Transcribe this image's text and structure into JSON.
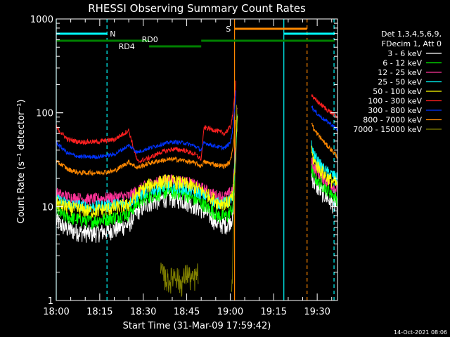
{
  "chart_data": {
    "type": "line",
    "title": "RHESSI Observing Summary Count Rates",
    "xlabel": "Start Time (31-Mar-09 17:59:42)",
    "ylabel": "Count Rate (s⁻¹ detector⁻¹)",
    "yscale": "log",
    "ylim": [
      1,
      1000
    ],
    "xlim_minutes": [
      0,
      97
    ],
    "x_ticks": [
      "18:00",
      "18:15",
      "18:30",
      "18:45",
      "19:00",
      "19:15",
      "19:30"
    ],
    "y_ticks": [
      "1",
      "10",
      "100",
      "1000"
    ],
    "legend_header": [
      "Det 1,3,4,5,6,9,",
      "FDecim 1, Att 0"
    ],
    "legend_position": "right",
    "timestamp": "14-Oct-2021 08:06",
    "annotations": {
      "N": "N",
      "S": "S",
      "RD0": "RD0",
      "RD4": "RD4"
    },
    "series": [
      {
        "name": "3 - 6 keV",
        "color": "#ffffff",
        "points": [
          [
            0,
            7
          ],
          [
            3,
            6
          ],
          [
            6,
            5.5
          ],
          [
            12,
            5.2
          ],
          [
            18,
            5.5
          ],
          [
            25,
            6.5
          ],
          [
            28,
            9
          ],
          [
            32,
            11
          ],
          [
            38,
            12.5
          ],
          [
            43,
            12
          ],
          [
            46,
            11
          ],
          [
            50,
            9.5
          ],
          [
            53,
            8
          ],
          [
            56,
            6.5
          ],
          [
            59,
            6.5
          ],
          [
            61,
            8
          ],
          [
            62,
            40
          ],
          [
            62.5,
            110
          ]
        ],
        "points2": [
          [
            88,
            22
          ],
          [
            89,
            18
          ],
          [
            91,
            15
          ],
          [
            93,
            13
          ],
          [
            95,
            11
          ],
          [
            97,
            10
          ]
        ]
      },
      {
        "name": "6 - 12 keV",
        "color": "#00ff00",
        "points": [
          [
            0,
            9
          ],
          [
            3,
            8
          ],
          [
            6,
            7.5
          ],
          [
            12,
            7
          ],
          [
            18,
            7.5
          ],
          [
            25,
            8.5
          ],
          [
            28,
            11
          ],
          [
            32,
            13
          ],
          [
            38,
            14.5
          ],
          [
            43,
            14
          ],
          [
            46,
            13
          ],
          [
            50,
            11
          ],
          [
            53,
            9.5
          ],
          [
            56,
            8
          ],
          [
            59,
            8
          ],
          [
            61,
            10
          ],
          [
            62,
            45
          ],
          [
            62.5,
            120
          ]
        ],
        "points2": [
          [
            88,
            26
          ],
          [
            89,
            21
          ],
          [
            91,
            18
          ],
          [
            93,
            16
          ],
          [
            95,
            14
          ],
          [
            97,
            12
          ]
        ]
      },
      {
        "name": "12 - 25 keV",
        "color": "#ff3399",
        "points": [
          [
            0,
            14
          ],
          [
            3,
            13
          ],
          [
            6,
            12.5
          ],
          [
            12,
            12
          ],
          [
            18,
            12.5
          ],
          [
            25,
            13
          ],
          [
            28,
            15
          ],
          [
            32,
            17.5
          ],
          [
            38,
            19.5
          ],
          [
            43,
            19
          ],
          [
            46,
            18
          ],
          [
            50,
            16
          ],
          [
            53,
            14
          ],
          [
            56,
            13
          ],
          [
            59,
            13
          ],
          [
            61,
            16
          ],
          [
            62,
            60
          ],
          [
            62.5,
            140
          ]
        ],
        "points2": [
          [
            88,
            32
          ],
          [
            89,
            26
          ],
          [
            91,
            22
          ],
          [
            93,
            19
          ],
          [
            95,
            17
          ],
          [
            97,
            15
          ]
        ]
      },
      {
        "name": "25 - 50 keV",
        "color": "#00ffff",
        "points": [
          [
            0,
            12
          ],
          [
            3,
            11
          ],
          [
            6,
            10.5
          ],
          [
            12,
            10
          ],
          [
            18,
            10.5
          ],
          [
            25,
            11
          ],
          [
            28,
            13
          ],
          [
            32,
            15
          ],
          [
            38,
            16.5
          ],
          [
            43,
            16
          ],
          [
            46,
            15
          ],
          [
            50,
            14
          ],
          [
            53,
            12
          ],
          [
            56,
            11
          ],
          [
            59,
            11
          ],
          [
            61,
            13
          ],
          [
            62,
            50
          ],
          [
            62.5,
            130
          ]
        ],
        "points2": [
          [
            88,
            45
          ],
          [
            89,
            35
          ],
          [
            91,
            28
          ],
          [
            93,
            24
          ],
          [
            95,
            22
          ],
          [
            97,
            20
          ]
        ]
      },
      {
        "name": "50 - 100 keV",
        "color": "#ffff00",
        "points": [
          [
            0,
            11
          ],
          [
            3,
            10
          ],
          [
            6,
            9.5
          ],
          [
            12,
            9
          ],
          [
            18,
            9.5
          ],
          [
            25,
            10.5
          ],
          [
            28,
            14
          ],
          [
            32,
            17
          ],
          [
            38,
            19
          ],
          [
            43,
            18
          ],
          [
            46,
            17
          ],
          [
            50,
            15
          ],
          [
            53,
            13
          ],
          [
            56,
            11
          ],
          [
            59,
            11
          ],
          [
            61,
            13
          ],
          [
            62,
            48
          ],
          [
            62.5,
            125
          ]
        ],
        "points2": [
          [
            88,
            38
          ],
          [
            89,
            30
          ],
          [
            91,
            25
          ],
          [
            93,
            21
          ],
          [
            95,
            19
          ],
          [
            97,
            17
          ]
        ]
      },
      {
        "name": "100 - 300 keV",
        "color": "#ff2020",
        "points": [
          [
            0,
            70
          ],
          [
            2,
            60
          ],
          [
            4,
            52
          ],
          [
            8,
            49
          ],
          [
            14,
            49
          ],
          [
            20,
            52
          ],
          [
            25,
            65
          ],
          [
            28,
            30
          ],
          [
            32,
            33
          ],
          [
            36,
            38
          ],
          [
            40,
            41
          ],
          [
            44,
            40
          ],
          [
            48,
            36
          ],
          [
            50,
            32
          ],
          [
            51,
            70
          ],
          [
            55,
            65
          ],
          [
            58,
            60
          ],
          [
            60,
            70
          ],
          [
            61,
            100
          ],
          [
            62,
            230
          ]
        ],
        "points2": [
          [
            88,
            160
          ],
          [
            89,
            140
          ],
          [
            91,
            125
          ],
          [
            93,
            110
          ],
          [
            95,
            100
          ],
          [
            97,
            90
          ]
        ]
      },
      {
        "name": "300 - 800 keV",
        "color": "#0033ff",
        "points": [
          [
            0,
            48
          ],
          [
            2,
            42
          ],
          [
            4,
            37
          ],
          [
            8,
            34
          ],
          [
            14,
            34
          ],
          [
            20,
            36
          ],
          [
            25,
            45
          ],
          [
            28,
            38
          ],
          [
            32,
            42
          ],
          [
            36,
            46
          ],
          [
            40,
            49
          ],
          [
            44,
            48
          ],
          [
            48,
            44
          ],
          [
            50,
            40
          ],
          [
            51,
            48
          ],
          [
            55,
            44
          ],
          [
            58,
            42
          ],
          [
            60,
            48
          ],
          [
            61,
            70
          ],
          [
            62,
            180
          ]
        ],
        "points2": [
          [
            88,
            120
          ],
          [
            89,
            105
          ],
          [
            91,
            92
          ],
          [
            93,
            82
          ],
          [
            95,
            75
          ],
          [
            97,
            65
          ]
        ]
      },
      {
        "name": "800 - 7000 keV",
        "color": "#ff8800",
        "points": [
          [
            0,
            30
          ],
          [
            2,
            28
          ],
          [
            4,
            25
          ],
          [
            8,
            23
          ],
          [
            14,
            23
          ],
          [
            20,
            24
          ],
          [
            25,
            30
          ],
          [
            28,
            26
          ],
          [
            32,
            29
          ],
          [
            36,
            31
          ],
          [
            40,
            32
          ],
          [
            44,
            31
          ],
          [
            48,
            29
          ],
          [
            50,
            27
          ],
          [
            51,
            30
          ],
          [
            55,
            28
          ],
          [
            58,
            27
          ],
          [
            60,
            30
          ],
          [
            61,
            45
          ],
          [
            62,
            90
          ]
        ],
        "points2": [
          [
            88,
            80
          ],
          [
            89,
            65
          ],
          [
            91,
            55
          ],
          [
            93,
            46
          ],
          [
            95,
            40
          ],
          [
            97,
            34
          ]
        ]
      },
      {
        "name": "7000 - 15000 keV",
        "color": "#808000",
        "points": [
          [
            36,
            2
          ],
          [
            39,
            1.6
          ],
          [
            41,
            2
          ],
          [
            43,
            1.5
          ],
          [
            45,
            2
          ],
          [
            47,
            1.6
          ],
          [
            49,
            2
          ]
        ],
        "points2": [
          [
            60.5,
            1
          ],
          [
            61.2,
            6
          ],
          [
            61.8,
            40
          ],
          [
            62.3,
            130
          ]
        ]
      }
    ]
  }
}
